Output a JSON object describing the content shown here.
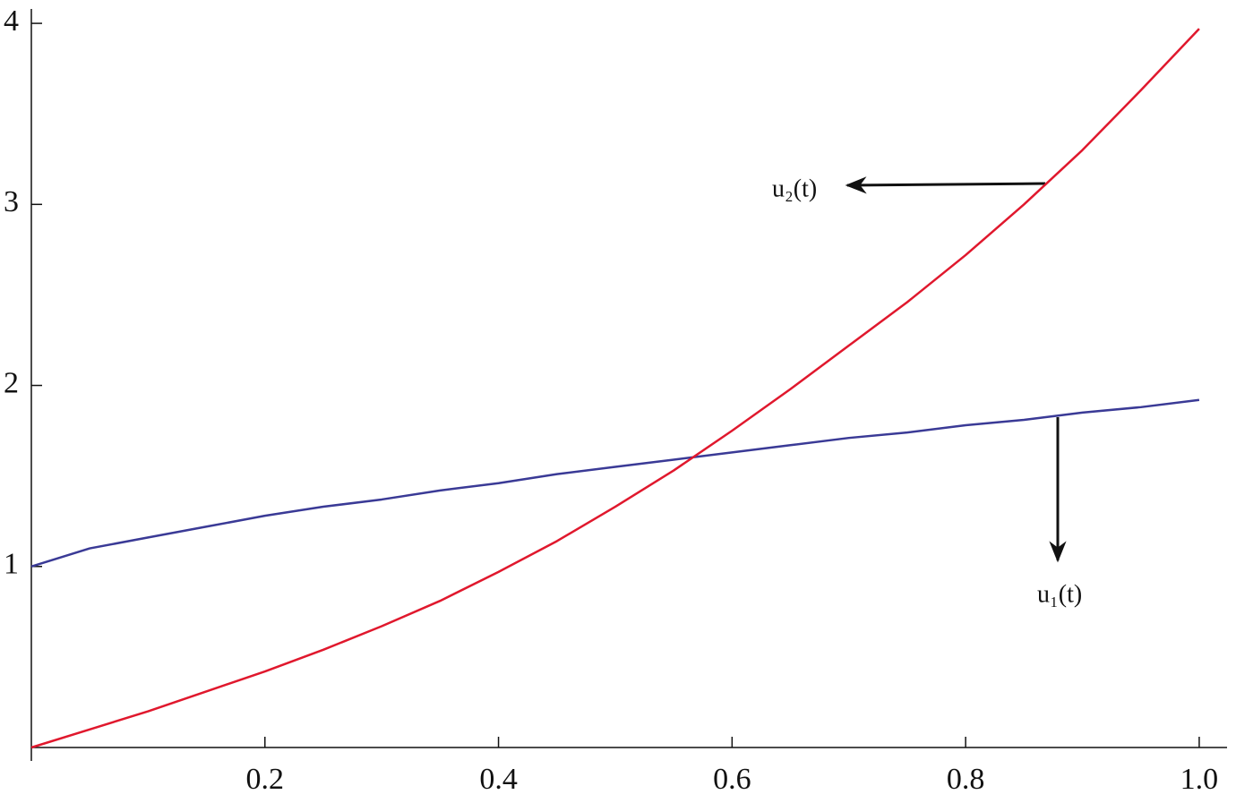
{
  "chart_data": {
    "type": "line",
    "x": [
      0,
      0.05,
      0.1,
      0.15,
      0.2,
      0.25,
      0.3,
      0.35,
      0.4,
      0.45,
      0.5,
      0.55,
      0.6,
      0.65,
      0.7,
      0.75,
      0.8,
      0.85,
      0.9,
      0.95,
      1
    ],
    "series": [
      {
        "name": "u₁(t)",
        "color": "#3a3a96",
        "values": [
          1,
          1.1,
          1.16,
          1.22,
          1.28,
          1.33,
          1.37,
          1.42,
          1.46,
          1.51,
          1.55,
          1.59,
          1.63,
          1.67,
          1.71,
          1.74,
          1.78,
          1.81,
          1.85,
          1.88,
          1.92
        ]
      },
      {
        "name": "u₂(t)",
        "color": "#e0182d",
        "values": [
          0,
          0.1,
          0.2,
          0.31,
          0.42,
          0.54,
          0.67,
          0.81,
          0.97,
          1.14,
          1.33,
          1.53,
          1.75,
          1.98,
          2.22,
          2.46,
          2.72,
          3.0,
          3.3,
          3.63,
          3.97
        ]
      }
    ],
    "xlim": [
      0,
      1.02
    ],
    "ylim": [
      0,
      4.04
    ],
    "xticks": [
      0.2,
      0.4,
      0.6,
      0.8,
      {
        "value": 1,
        "label": "1.0"
      }
    ],
    "yticks": [
      1,
      2,
      3,
      4
    ]
  }
}
